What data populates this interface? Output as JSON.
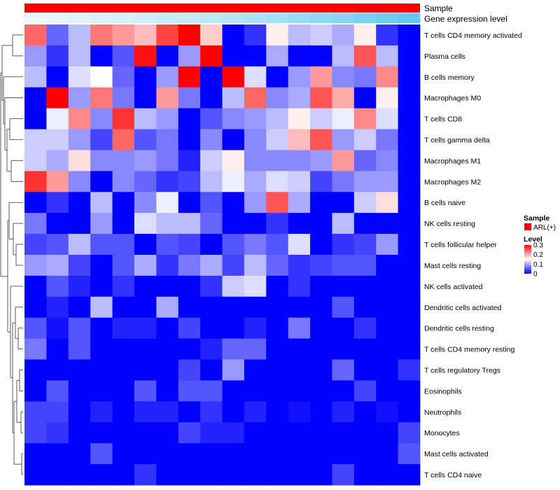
{
  "chart_data": {
    "type": "heatmap",
    "title": "",
    "annotations": [
      {
        "name": "Sample",
        "value": "ARL(+)",
        "color": "#ff0000"
      },
      {
        "name": "Gene expression level",
        "gradient": [
          "#eef7fb",
          "#5ac8f0"
        ]
      }
    ],
    "rows": [
      "T cells CD4 memory activated",
      "Plasma cells",
      "B cells memory",
      "Macrophages M0",
      "T cells CD8",
      "T cells gamma delta",
      "Macrophages M1",
      "Macrophages M2",
      "B cells naive",
      "NK cells resting",
      "T cells follicular helper",
      "Mast cells resting",
      "NK cells activated",
      "Dendritic cells activated",
      "Dendritic cells resting",
      "T cells CD4 memory resting",
      "T cells regulatory  Tregs",
      "Eosinophils",
      "Neutrophils",
      "Monocytes",
      "Mast cells activated",
      "T cells CD4 naive"
    ],
    "n_columns": 18,
    "values": [
      [
        0.24,
        0.06,
        0.11,
        0.23,
        0.21,
        0.19,
        0.26,
        0.3,
        0.18,
        0.0,
        0.03,
        0.16,
        0.11,
        0.12,
        0.1,
        0.16,
        0.03,
        0.0
      ],
      [
        0.09,
        0.03,
        0.11,
        0.0,
        0.05,
        0.29,
        0.0,
        0.09,
        0.3,
        0.0,
        0.0,
        0.1,
        0.0,
        0.0,
        0.11,
        0.25,
        0.11,
        0.0
      ],
      [
        0.11,
        0.0,
        0.13,
        0.15,
        0.06,
        0.0,
        0.09,
        0.3,
        0.0,
        0.3,
        0.13,
        0.0,
        0.09,
        0.21,
        0.08,
        0.07,
        0.22,
        0.0
      ],
      [
        0.0,
        0.3,
        0.09,
        0.23,
        0.07,
        0.0,
        0.21,
        0.07,
        0.0,
        0.11,
        0.24,
        0.08,
        0.1,
        0.25,
        0.2,
        0.0,
        0.16,
        0.0
      ],
      [
        0.0,
        0.14,
        0.22,
        0.08,
        0.27,
        0.11,
        0.09,
        0.0,
        0.05,
        0.08,
        0.09,
        0.11,
        0.16,
        0.12,
        0.14,
        0.22,
        0.13,
        0.0
      ],
      [
        0.12,
        0.12,
        0.09,
        0.04,
        0.24,
        0.05,
        0.07,
        0.0,
        0.08,
        0.0,
        0.08,
        0.12,
        0.19,
        0.25,
        0.09,
        0.12,
        0.07,
        0.0
      ],
      [
        0.12,
        0.1,
        0.17,
        0.08,
        0.08,
        0.09,
        0.07,
        0.02,
        0.12,
        0.16,
        0.08,
        0.08,
        0.08,
        0.09,
        0.21,
        0.06,
        0.08,
        0.0
      ],
      [
        0.27,
        0.21,
        0.08,
        0.0,
        0.08,
        0.06,
        0.03,
        0.04,
        0.11,
        0.14,
        0.1,
        0.13,
        0.12,
        0.04,
        0.07,
        0.09,
        0.09,
        0.0
      ],
      [
        0.0,
        0.03,
        0.0,
        0.11,
        0.0,
        0.08,
        0.14,
        0.0,
        0.05,
        0.0,
        0.09,
        0.25,
        0.1,
        0.0,
        0.0,
        0.12,
        0.17,
        0.0
      ],
      [
        0.07,
        0.0,
        0.0,
        0.09,
        0.0,
        0.13,
        0.11,
        0.11,
        0.06,
        0.0,
        0.0,
        0.03,
        0.0,
        0.0,
        0.11,
        0.0,
        0.0,
        0.0
      ],
      [
        0.04,
        0.05,
        0.11,
        0.05,
        0.05,
        0.0,
        0.05,
        0.04,
        0.0,
        0.05,
        0.07,
        0.05,
        0.13,
        0.0,
        0.03,
        0.04,
        0.09,
        0.0
      ],
      [
        0.09,
        0.1,
        0.04,
        0.0,
        0.05,
        0.1,
        0.03,
        0.07,
        0.1,
        0.04,
        0.11,
        0.06,
        0.03,
        0.04,
        0.05,
        0.05,
        0.0,
        0.0
      ],
      [
        0.0,
        0.05,
        0.02,
        0.0,
        0.03,
        0.0,
        0.0,
        0.0,
        0.03,
        0.12,
        0.13,
        0.0,
        0.03,
        0.0,
        0.0,
        0.0,
        0.0,
        0.0
      ],
      [
        0.0,
        0.02,
        0.0,
        0.11,
        0.0,
        0.0,
        0.1,
        0.0,
        0.0,
        0.0,
        0.0,
        0.0,
        0.0,
        0.0,
        0.05,
        0.0,
        0.0,
        0.0
      ],
      [
        0.05,
        0.01,
        0.05,
        0.0,
        0.02,
        0.02,
        0.0,
        0.04,
        0.0,
        0.0,
        0.02,
        0.0,
        0.07,
        0.0,
        0.0,
        0.03,
        0.0,
        0.0
      ],
      [
        0.07,
        0.0,
        0.05,
        0.0,
        0.0,
        0.0,
        0.0,
        0.0,
        0.02,
        0.06,
        0.06,
        0.0,
        0.0,
        0.0,
        0.0,
        0.0,
        0.0,
        0.0
      ],
      [
        0.0,
        0.0,
        0.0,
        0.0,
        0.0,
        0.0,
        0.0,
        0.04,
        0.0,
        0.09,
        0.0,
        0.0,
        0.0,
        0.0,
        0.06,
        0.0,
        0.0,
        0.03
      ],
      [
        0.0,
        0.05,
        0.0,
        0.0,
        0.0,
        0.05,
        0.0,
        0.05,
        0.05,
        0.0,
        0.0,
        0.0,
        0.0,
        0.0,
        0.0,
        0.04,
        0.0,
        0.0
      ],
      [
        0.04,
        0.04,
        0.0,
        0.02,
        0.0,
        0.02,
        0.02,
        0.0,
        0.03,
        0.0,
        0.02,
        0.0,
        0.01,
        0.0,
        0.02,
        0.0,
        0.01,
        0.0
      ],
      [
        0.04,
        0.03,
        0.0,
        0.0,
        0.0,
        0.0,
        0.0,
        0.04,
        0.02,
        0.02,
        0.0,
        0.0,
        0.0,
        0.0,
        0.0,
        0.0,
        0.0,
        0.04
      ],
      [
        0.0,
        0.0,
        0.0,
        0.05,
        0.0,
        0.0,
        0.0,
        0.0,
        0.0,
        0.0,
        0.0,
        0.0,
        0.0,
        0.0,
        0.0,
        0.0,
        0.0,
        0.05
      ],
      [
        0.0,
        0.0,
        0.0,
        0.0,
        0.0,
        0.03,
        0.0,
        0.0,
        0.0,
        0.0,
        0.0,
        0.0,
        0.0,
        0.0,
        0.04,
        0.0,
        0.0,
        0.0
      ]
    ],
    "gene_expression": [
      0.02,
      0.05,
      0.08,
      0.12,
      0.16,
      0.2,
      0.24,
      0.28,
      0.32,
      0.38,
      0.44,
      0.5,
      0.58,
      0.65,
      0.72,
      0.8,
      0.88,
      0.95
    ],
    "color_scale": {
      "min": 0,
      "mid": 0.15,
      "max": 0.3,
      "low": "#0000ff",
      "mid_color": "#ffffff",
      "high": "#ff0000"
    },
    "legend": {
      "sample_title": "Sample",
      "sample_entry": "ARL(+)",
      "level_title": "Level",
      "level_ticks": [
        "0.3",
        "0.2",
        "0.1",
        "0"
      ]
    }
  }
}
